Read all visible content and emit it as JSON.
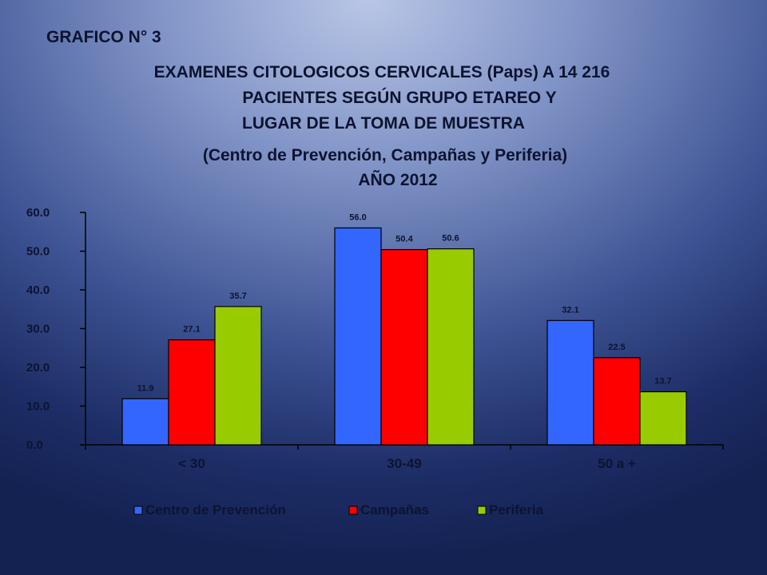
{
  "slide": {
    "label": "GRAFICO N° 3",
    "title_lines": [
      "EXAMENES CITOLOGICOS CERVICALES (Paps) A 14 216",
      "PACIENTES SEGÚN GRUPO ETAREO Y",
      "LUGAR DE LA TOMA DE MUESTRA",
      "(Centro de Prevención, Campañas y Periferia)",
      "AÑO  2012"
    ]
  },
  "chart_data": {
    "type": "bar",
    "categories": [
      "< 30",
      "30-49",
      "50 a +"
    ],
    "series": [
      {
        "name": "Centro de Prevención",
        "values": [
          11.9,
          56.0,
          32.1
        ],
        "color": "#3366ff"
      },
      {
        "name": "Campañas",
        "values": [
          27.1,
          50.4,
          22.5
        ],
        "color": "#ff0000"
      },
      {
        "name": "Periferia",
        "values": [
          35.7,
          50.6,
          13.7
        ],
        "color": "#99cc00"
      }
    ],
    "ylim": [
      0,
      60
    ],
    "yticks": [
      "0.0",
      "10.0",
      "20.0",
      "30.0",
      "40.0",
      "50.0",
      "60.0"
    ],
    "data_labels": true,
    "legend_position": "bottom",
    "grid": false
  }
}
